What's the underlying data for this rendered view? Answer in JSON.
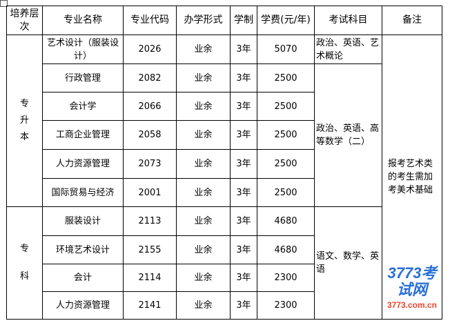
{
  "headers": [
    "培养层次",
    "专业名称",
    "专业代码",
    "办学形式",
    "学制",
    "学费(元/年)",
    "考试科目",
    "备注"
  ],
  "groups": [
    {
      "level": "专升本",
      "exam_first": "政治、英语、艺术概论",
      "exam_rest": "政治、英语、高等数学（二）"
    },
    {
      "level": "专科",
      "exam": "语文、数学、英语"
    }
  ],
  "remark": "报考艺术类的考生需加考美术基础",
  "rows": [
    {
      "name": "艺术设计（服装设计）",
      "code": "2026",
      "form": "业余",
      "years": "3年",
      "fee": "5070"
    },
    {
      "name": "行政管理",
      "code": "2082",
      "form": "业余",
      "years": "3年",
      "fee": "2500"
    },
    {
      "name": "会计学",
      "code": "2066",
      "form": "业余",
      "years": "3年",
      "fee": "2500"
    },
    {
      "name": "工商企业管理",
      "code": "2058",
      "form": "业余",
      "years": "3年",
      "fee": "2500"
    },
    {
      "name": "人力资源管理",
      "code": "2073",
      "form": "业余",
      "years": "3年",
      "fee": "2500"
    },
    {
      "name": "国际贸易与经济",
      "code": "2001",
      "form": "业余",
      "years": "3年",
      "fee": "2500"
    },
    {
      "name": "服装设计",
      "code": "2113",
      "form": "业余",
      "years": "3年",
      "fee": "4680"
    },
    {
      "name": "环境艺术设计",
      "code": "2155",
      "form": "业余",
      "years": "3年",
      "fee": "4680"
    },
    {
      "name": "会计",
      "code": "2114",
      "form": "业余",
      "years": "3年",
      "fee": "2300"
    },
    {
      "name": "人力资源管理",
      "code": "2141",
      "form": "业余",
      "years": "3年",
      "fee": "2300"
    }
  ],
  "watermark": {
    "logo": "3773考试网",
    "url": "3773.com.cn"
  }
}
